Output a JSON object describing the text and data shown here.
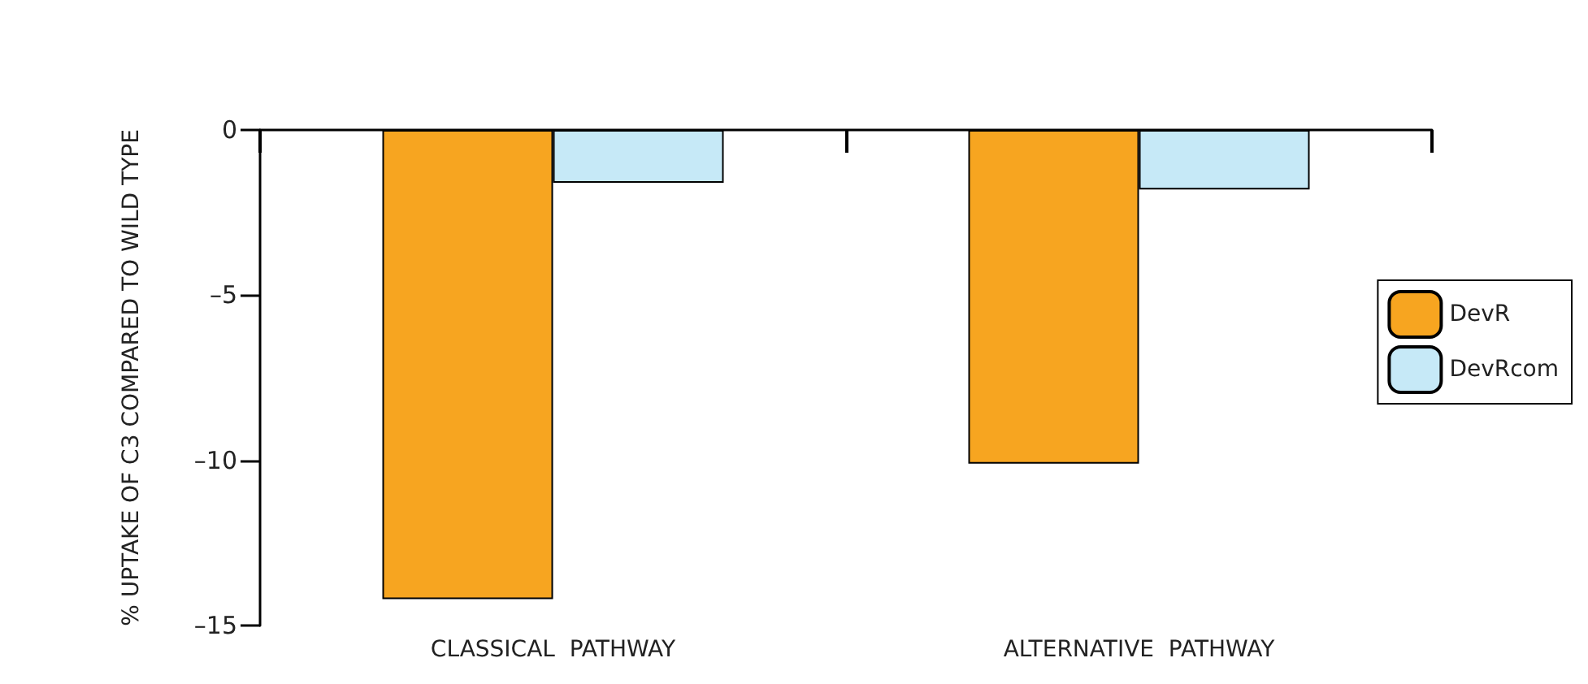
{
  "chart_data": {
    "type": "bar",
    "ylabel": "% UPTAKE OF C3 COMPARED TO WILD TYPE",
    "categories": [
      "CLASSICAL  PATHWAY",
      "ALTERNATIVE  PATHWAY"
    ],
    "series": [
      {
        "name": "DevR",
        "color": "#f7a520",
        "values": [
          -14.2,
          -10.1
        ]
      },
      {
        "name": "DevRcom",
        "color": "#c6e9f7",
        "values": [
          -1.6,
          -1.8
        ]
      }
    ],
    "ylim": [
      -15,
      0
    ],
    "yticks": [
      {
        "value": -15,
        "label": "–15"
      },
      {
        "value": -10,
        "label": "–10"
      },
      {
        "value": -5,
        "label": "–5"
      },
      {
        "value": 0,
        "label": "0"
      }
    ],
    "grid": false,
    "legend": "right"
  }
}
